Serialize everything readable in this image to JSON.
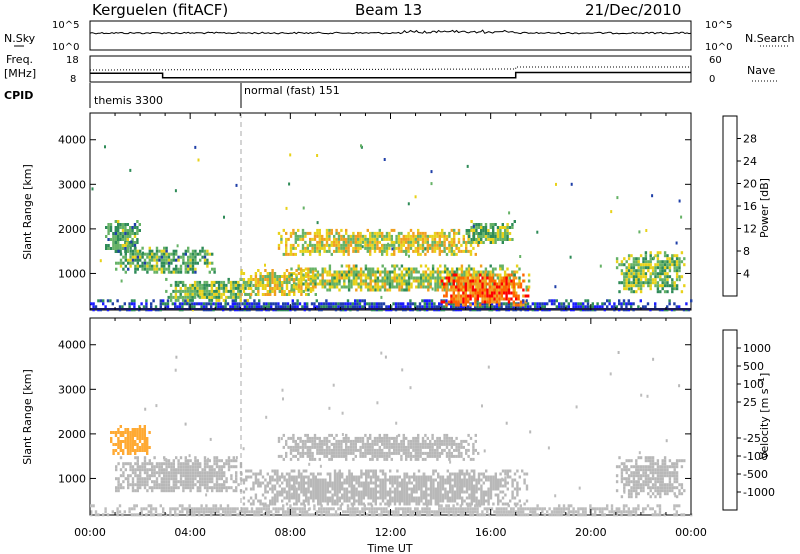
{
  "header": {
    "station": "Kerguelen (fitACF)",
    "beam": "Beam 13",
    "date": "21/Dec/2010"
  },
  "sky_panel": {
    "left_label": "N.Sky",
    "left_ticks": [
      "10^5",
      "10^0"
    ],
    "right_ticks": [
      "10^5",
      "10^0"
    ],
    "right_label": "N.Search"
  },
  "freq_panel": {
    "left_label_1": "Freq.",
    "left_label_2": "[MHz]",
    "left_ticks": [
      "18",
      "8"
    ],
    "right_ticks": [
      "60",
      "0"
    ],
    "right_label": "Nave"
  },
  "cpid": {
    "label": "CPID",
    "segments": [
      {
        "text": "themis 3300",
        "start_hour": 0
      },
      {
        "text": "normal (fast) 151",
        "start_hour": 6
      }
    ]
  },
  "colors": {
    "power_scale": [
      "#1a1aff",
      "#1f3fa8",
      "#2e8b57",
      "#66b266",
      "#e8d21a",
      "#f0a020",
      "#ff6600",
      "#ff0000"
    ],
    "velocity_scale": [
      "#1a1acc",
      "#2244aa",
      "#2e8b57",
      "#66cc44",
      "#bdbdbd",
      "#bdbdbd",
      "#ffaa33",
      "#ff7700",
      "#ff3300",
      "#ff0000"
    ],
    "ground_scatter": "#b8b8b8"
  },
  "chart_data": [
    {
      "type": "heatmap",
      "name": "power",
      "ylabel": "Slant Range [km]",
      "yticks": [
        "1000",
        "2000",
        "3000",
        "4000"
      ],
      "ylim": [
        180,
        4600
      ],
      "xlim": [
        0,
        24
      ],
      "colorbar": {
        "label": "Power [dB]",
        "ticks": [
          "4",
          "8",
          "12",
          "16",
          "20",
          "24",
          "28"
        ],
        "range": [
          0,
          32
        ]
      },
      "regions": [
        {
          "t0": 0.0,
          "t1": 24.0,
          "r0": 190,
          "r1": 420,
          "v": 6
        },
        {
          "t0": 0.6,
          "t1": 2.0,
          "r0": 1500,
          "r1": 2200,
          "v": 12
        },
        {
          "t0": 1.0,
          "t1": 5.0,
          "r0": 1000,
          "r1": 1600,
          "v": 12
        },
        {
          "t0": 3.0,
          "t1": 6.5,
          "r0": 400,
          "r1": 900,
          "v": 14
        },
        {
          "t0": 6.0,
          "t1": 9.0,
          "r0": 500,
          "r1": 1100,
          "v": 18
        },
        {
          "t0": 7.5,
          "t1": 15.5,
          "r0": 1450,
          "r1": 2000,
          "v": 18
        },
        {
          "t0": 8.0,
          "t1": 17.5,
          "r0": 600,
          "r1": 1200,
          "v": 16
        },
        {
          "t0": 14.0,
          "t1": 17.5,
          "r0": 300,
          "r1": 1000,
          "v": 26
        },
        {
          "t0": 15.0,
          "t1": 17.0,
          "r0": 1700,
          "r1": 2200,
          "v": 14
        },
        {
          "t0": 21.0,
          "t1": 23.7,
          "r0": 600,
          "r1": 1500,
          "v": 14
        }
      ]
    },
    {
      "type": "heatmap",
      "name": "velocity",
      "ylabel": "Slant Range [km]",
      "yticks": [
        "1000",
        "2000",
        "3000",
        "4000"
      ],
      "ylim": [
        180,
        4600
      ],
      "xlim": [
        0,
        24
      ],
      "colorbar": {
        "label": "Velocity [m s^-1]",
        "ticks": [
          "1000",
          "500",
          "100",
          "25",
          "-25",
          "-100",
          "-500",
          "-1000"
        ],
        "range": [
          -1000,
          1000
        ]
      },
      "regions": [
        {
          "t0": 0.0,
          "t1": 24.0,
          "r0": 190,
          "r1": 420,
          "v": 100
        },
        {
          "t0": 0.8,
          "t1": 2.4,
          "r0": 1550,
          "r1": 2200,
          "v": -300
        },
        {
          "t0": 1.0,
          "t1": 6.0,
          "r0": 700,
          "r1": 1500,
          "v": 0
        },
        {
          "t0": 6.0,
          "t1": 17.5,
          "r0": 400,
          "r1": 1200,
          "v": 0
        },
        {
          "t0": 7.5,
          "t1": 15.5,
          "r0": 1450,
          "r1": 2000,
          "v": 0
        },
        {
          "t0": 21.0,
          "t1": 23.7,
          "r0": 600,
          "r1": 1500,
          "v": 0
        }
      ]
    }
  ],
  "x_axis": {
    "label": "Time UT",
    "ticks": [
      "00:00",
      "04:00",
      "08:00",
      "12:00",
      "16:00",
      "20:00",
      "00:00"
    ]
  }
}
